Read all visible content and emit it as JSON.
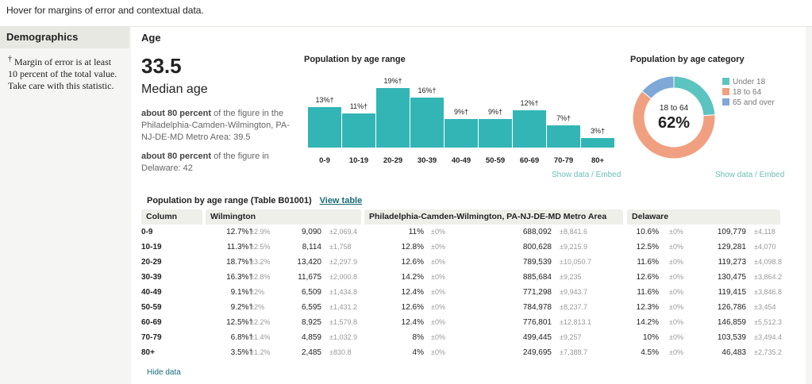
{
  "topbar": {
    "hint": "Hover for margins of error and contextual data."
  },
  "sidebar": {
    "title": "Demographics",
    "note_symbol": "†",
    "note": "Margin of error is at least 10 percent of the total value. Take care with this statistic."
  },
  "section": {
    "title": "Age",
    "median_value": "33.5",
    "median_label": "Median age",
    "comparisons": [
      {
        "bold": "about 80 percent",
        "text": " of the figure in the Philadelphia-Camden-Wilmington, PA-NJ-DE-MD Metro Area: 39.5"
      },
      {
        "bold": "about 80 percent",
        "text": " of the figure in Delaware: 42"
      }
    ]
  },
  "links": {
    "show_data": "Show data",
    "sep": " / ",
    "embed": "Embed"
  },
  "colors": {
    "bar": "#34b5b5",
    "under18": "#5bc4c0",
    "18to64": "#f0a080",
    "65over": "#7fa8d6"
  },
  "chart_data": [
    {
      "type": "bar",
      "title": "Population by age range",
      "categories": [
        "0-9",
        "10-19",
        "20-29",
        "30-39",
        "40-49",
        "50-59",
        "60-69",
        "70-79",
        "80+"
      ],
      "values": [
        13,
        11,
        19,
        16,
        9,
        9,
        12,
        7,
        3
      ],
      "labels": [
        "13%†",
        "11%†",
        "19%†",
        "16%†",
        "9%†",
        "9%†",
        "12%†",
        "7%†",
        "3%†"
      ],
      "ylim": [
        0,
        19
      ]
    },
    {
      "type": "pie",
      "title": "Population by age category",
      "categories": [
        "Under 18",
        "18 to 64",
        "65 and over"
      ],
      "values": [
        24,
        62,
        14
      ],
      "center_label": "18 to 64",
      "center_value": "62%",
      "legend": "right"
    }
  ],
  "table": {
    "title": "Population by age range (Table B01001)",
    "view_link": "View table",
    "hide_link": "Hide data",
    "headers": [
      "Column",
      "Wilmington",
      "Philadelphia-Camden-Wilmington, PA-NJ-DE-MD Metro Area",
      "Delaware"
    ],
    "rows": [
      [
        "0-9",
        "12.7%†",
        "±2.9%",
        "9,090",
        "±2,069.4",
        "11%",
        "±0%",
        "688,092",
        "±8,841.6",
        "10.6%",
        "±0%",
        "109,779",
        "±4,118"
      ],
      [
        "10-19",
        "11.3%†",
        "±2.5%",
        "8,114",
        "±1,758",
        "12.8%",
        "±0%",
        "800,628",
        "±9,215.9",
        "12.5%",
        "±0%",
        "129,281",
        "±4,070"
      ],
      [
        "20-29",
        "18.7%†",
        "±3.2%",
        "13,420",
        "±2,297.9",
        "12.6%",
        "±0%",
        "789,539",
        "±10,050.7",
        "11.6%",
        "±0%",
        "119,273",
        "±4,098.8"
      ],
      [
        "30-39",
        "16.3%†",
        "±2.8%",
        "11,675",
        "±2,000.8",
        "14.2%",
        "±0%",
        "885,684",
        "±9,235",
        "12.6%",
        "±0%",
        "130,475",
        "±3,864.2"
      ],
      [
        "40-49",
        "9.1%†",
        "±2%",
        "6,509",
        "±1,434.8",
        "12.4%",
        "±0%",
        "771,298",
        "±9,943.7",
        "11.6%",
        "±0%",
        "119,415",
        "±3,846.8"
      ],
      [
        "50-59",
        "9.2%†",
        "±2%",
        "6,595",
        "±1,431.2",
        "12.6%",
        "±0%",
        "784,978",
        "±8,237.7",
        "12.3%",
        "±0%",
        "126,786",
        "±3,454"
      ],
      [
        "60-69",
        "12.5%†",
        "±2.2%",
        "8,925",
        "±1,579.8",
        "12.4%",
        "±0%",
        "776,801",
        "±12,813.1",
        "14.2%",
        "±0%",
        "146,859",
        "±5,512.3"
      ],
      [
        "70-79",
        "6.8%†",
        "±1.4%",
        "4,859",
        "±1,032.9",
        "8%",
        "±0%",
        "499,445",
        "±9,257",
        "10%",
        "±0%",
        "103,539",
        "±3,494.4"
      ],
      [
        "80+",
        "3.5%†",
        "±1.2%",
        "2,485",
        "±830.8",
        "4%",
        "±0%",
        "249,695",
        "±7,388.7",
        "4.5%",
        "±0%",
        "46,483",
        "±2,735.2"
      ]
    ]
  }
}
